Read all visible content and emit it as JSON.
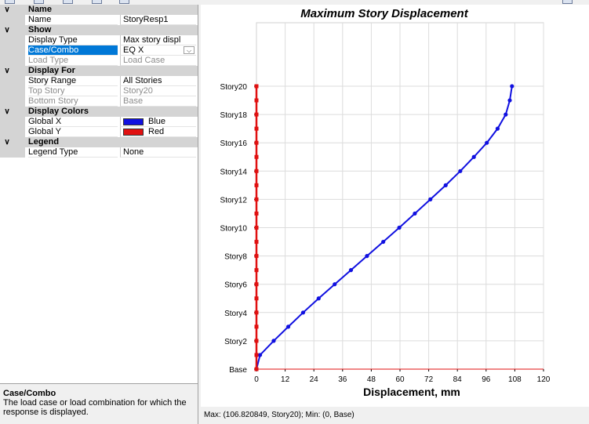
{
  "property_grid": {
    "categories": [
      {
        "label": "Name",
        "properties": [
          {
            "name": "Name",
            "value": "StoryResp1"
          }
        ]
      },
      {
        "label": "Show",
        "properties": [
          {
            "name": "Display Type",
            "value": "Max story displ"
          },
          {
            "name": "Case/Combo",
            "value": "EQ X",
            "selected": true,
            "dropdown": true,
            "dropdown_icon": "chevron-down-icon"
          },
          {
            "name": "Load Type",
            "value": "Load Case",
            "disabled": true
          }
        ]
      },
      {
        "label": "Display For",
        "properties": [
          {
            "name": "Story Range",
            "value": "All Stories"
          },
          {
            "name": "Top Story",
            "value": "Story20",
            "disabled": true
          },
          {
            "name": "Bottom Story",
            "value": "Base",
            "disabled": true
          }
        ]
      },
      {
        "label": "Display Colors",
        "properties": [
          {
            "name": "Global X",
            "value": "Blue",
            "swatch": "#1010e0"
          },
          {
            "name": "Global Y",
            "value": "Red",
            "swatch": "#e01010"
          }
        ]
      },
      {
        "label": "Legend",
        "properties": [
          {
            "name": "Legend Type",
            "value": "None"
          }
        ]
      }
    ],
    "expand_icon": "chevron-down-icon"
  },
  "description": {
    "title": "Case/Combo",
    "text": "The load case or load combination for which the response is displayed."
  },
  "status_bar": {
    "text": "Max: (106.820849, Story20);   Min: (0, Base)"
  },
  "chart_data": {
    "type": "line",
    "title": "Maximum Story Displacement",
    "xlabel": "Displacement, mm",
    "ylabel": "",
    "xlim": [
      0,
      120
    ],
    "x_ticks": [
      0,
      12,
      24,
      36,
      48,
      60,
      72,
      84,
      96,
      108,
      120
    ],
    "categories": [
      "Base",
      "Story1",
      "Story2",
      "Story3",
      "Story4",
      "Story5",
      "Story6",
      "Story7",
      "Story8",
      "Story9",
      "Story10",
      "Story11",
      "Story12",
      "Story13",
      "Story14",
      "Story15",
      "Story16",
      "Story17",
      "Story18",
      "Story19",
      "Story20"
    ],
    "y_tick_labels": [
      "Base",
      "Story2",
      "Story4",
      "Story6",
      "Story8",
      "Story10",
      "Story12",
      "Story14",
      "Story16",
      "Story18",
      "Story20"
    ],
    "grid": true,
    "series": [
      {
        "name": "Global X",
        "color": "#1010e0",
        "values": [
          0,
          1.5,
          7.2,
          13.3,
          19.5,
          26,
          32.7,
          39.5,
          46.2,
          53,
          59.7,
          66.2,
          72.7,
          79.1,
          85.2,
          90.9,
          96.3,
          100.8,
          104.2,
          105.9,
          106.820849
        ]
      },
      {
        "name": "Global Y",
        "color": "#e01010",
        "values": [
          0,
          0,
          0,
          0,
          0,
          0,
          0,
          0,
          0,
          0,
          0,
          0,
          0,
          0,
          0,
          0,
          0,
          0,
          0,
          0,
          0
        ]
      }
    ]
  }
}
